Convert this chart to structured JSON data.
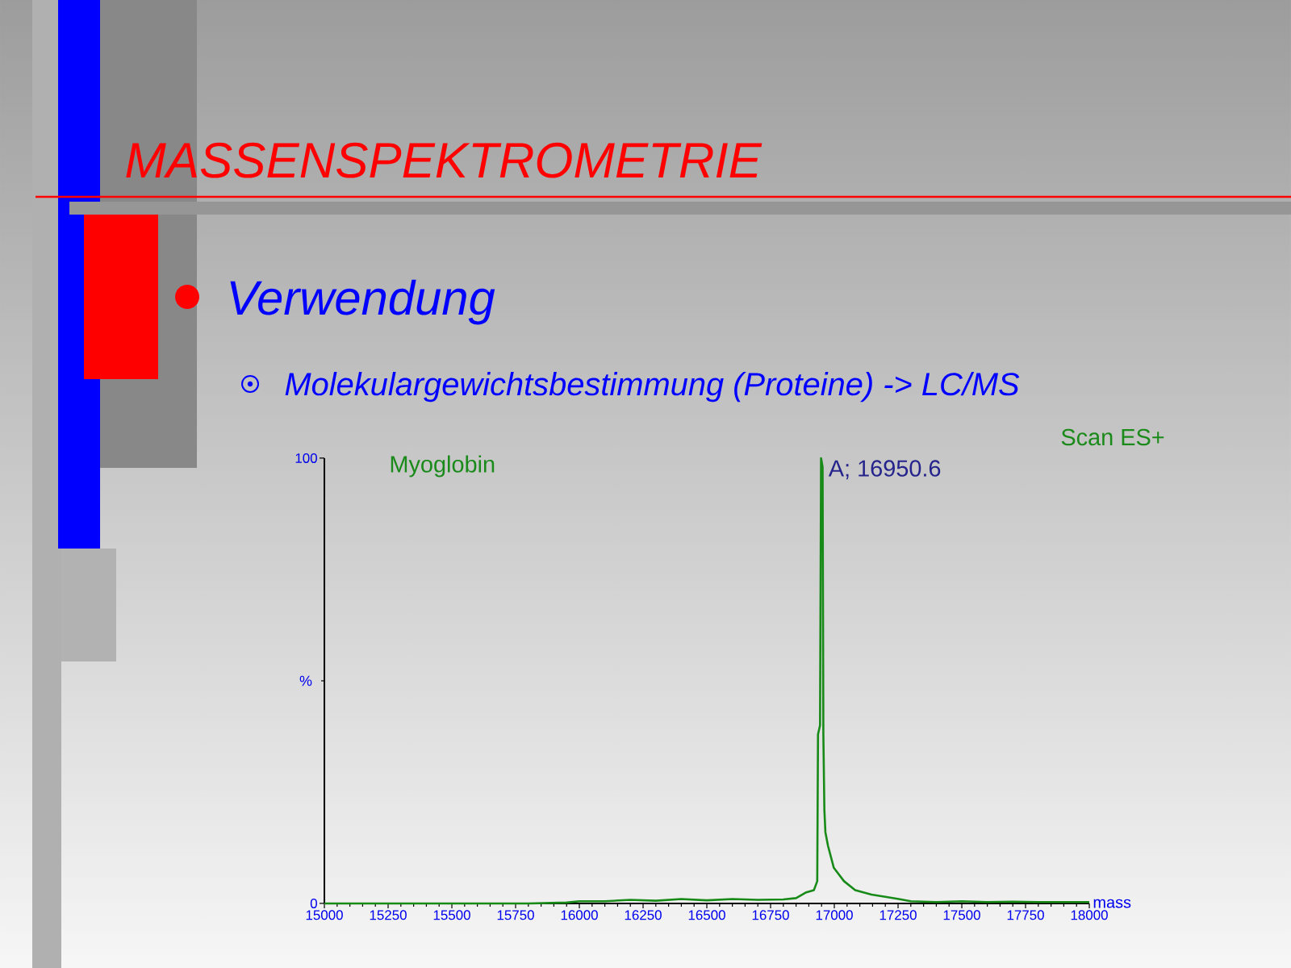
{
  "chart_data": {
    "type": "line",
    "title": "MASSENSPEKTROMETRIE",
    "subtitle": "Verwendung",
    "xlabel": "mass",
    "ylabel": "%",
    "annotations": [
      "Molekulargewichtsbestimmung (Proteine) -> LC/MS",
      "Myoglobin",
      "Scan ES+",
      {
        "text": "A; 16950.6",
        "x": 16950.6,
        "y": 100
      }
    ],
    "x": [
      15000,
      15200,
      15400,
      15600,
      15800,
      15950,
      16000,
      16100,
      16200,
      16300,
      16400,
      16500,
      16600,
      16700,
      16800,
      16850,
      16890,
      16920,
      16933,
      16936,
      16944,
      16948,
      16954,
      16957,
      16961,
      16965,
      16975,
      16998,
      17038,
      17082,
      17146,
      17200,
      17253,
      17300,
      17400,
      17500,
      17600,
      17700,
      17800,
      17900,
      18000
    ],
    "series": [
      {
        "color": "#188a18",
        "values": [
          0,
          0,
          0,
          0,
          0,
          0.2,
          0.5,
          0.5,
          0.8,
          0.6,
          1.0,
          0.7,
          1.0,
          0.8,
          0.9,
          1.2,
          2.5,
          3.0,
          5.0,
          38,
          40,
          100,
          98,
          38,
          21,
          16,
          13,
          8,
          5,
          3,
          2,
          1.5,
          1,
          0.5,
          0.3,
          0.5,
          0.3,
          0.4,
          0.3,
          0.3,
          0.3
        ]
      }
    ],
    "xlim": [
      15000,
      18000
    ],
    "ylim": [
      0,
      100
    ],
    "xticks": [
      15000,
      15250,
      15500,
      15750,
      16000,
      16250,
      16500,
      16750,
      17000,
      17250,
      17500,
      17750,
      18000
    ],
    "yticks": [
      0,
      100
    ]
  }
}
